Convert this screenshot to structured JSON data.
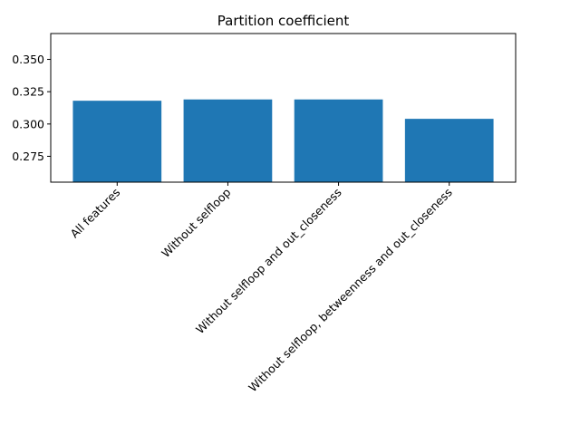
{
  "chart_data": {
    "type": "bar",
    "title": "Partition coefficient",
    "xlabel": "",
    "ylabel": "",
    "categories": [
      "All features",
      "Without selfloop",
      "Without selfloop and out_closeness",
      "Without selfloop, betweenness and out_closeness"
    ],
    "values": [
      0.318,
      0.319,
      0.319,
      0.304
    ],
    "ylim": [
      0.255,
      0.37
    ],
    "yticks": [
      0.275,
      0.3,
      0.325,
      0.35
    ],
    "ytick_labels": [
      "0.275",
      "0.300",
      "0.325",
      "0.350"
    ],
    "xtick_rotation_deg": 45,
    "bar_color": "#1f77b4",
    "grid": false,
    "legend": "none"
  }
}
